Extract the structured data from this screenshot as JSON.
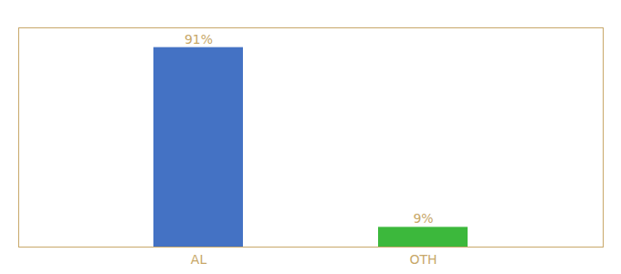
{
  "chart_data": {
    "type": "bar",
    "categories": [
      "AL",
      "OTH"
    ],
    "values": [
      91,
      9
    ],
    "value_labels": [
      "91%",
      "9%"
    ],
    "data_labels": true,
    "colors": [
      "#4472c4",
      "#3cb83c"
    ],
    "ylim": [
      0,
      100
    ],
    "tick_labels": "x"
  }
}
